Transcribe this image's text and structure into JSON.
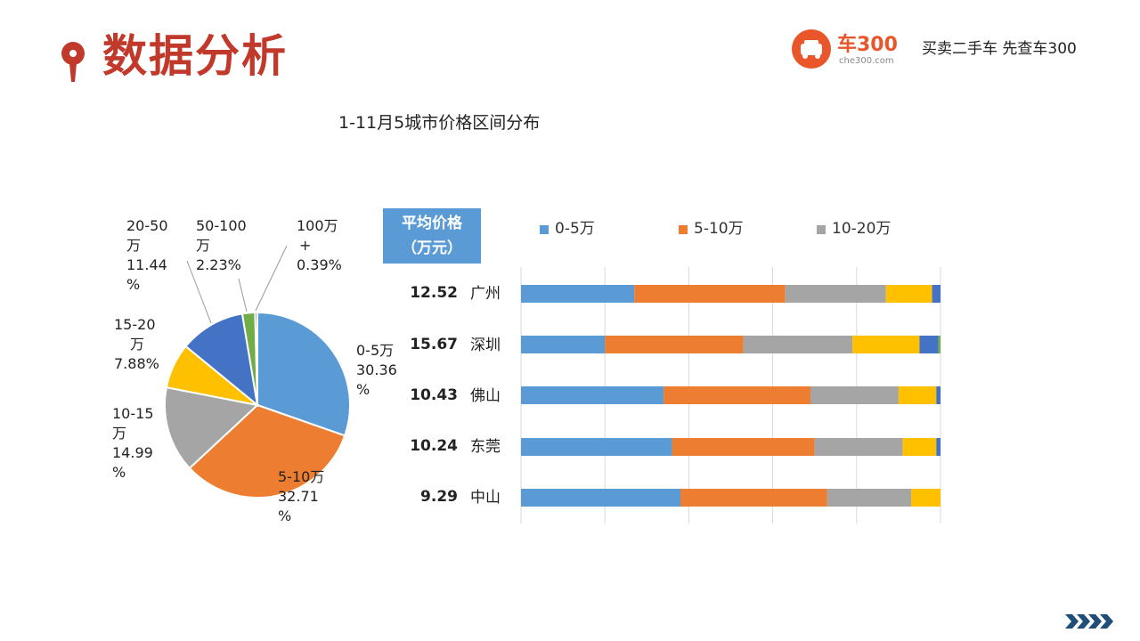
{
  "header": {
    "title": "数据分析",
    "brand": "车300",
    "brand_sub": "che300.com",
    "slogan": "买卖二手车  先查车300"
  },
  "chart_title": "1-11月5城市价格区间分布",
  "avg_box": {
    "line1": "平均价格",
    "line2": "（万元）"
  },
  "colors": {
    "title_red": "#c0392b",
    "brand_orange": "#e8562a",
    "s0": "#5b9bd5",
    "s1": "#ed7d31",
    "s2": "#a5a5a5",
    "s3": "#ffc000",
    "s4": "#4472c4",
    "s5": "#70ad47",
    "s6": "#255e91"
  },
  "legend": [
    "0-5万",
    "5-10万",
    "10-20万"
  ],
  "chart_data": [
    {
      "type": "pie",
      "slices": [
        {
          "label": "0-5万",
          "value": 30.36,
          "text": [
            "0-5万",
            "30.36",
            "%"
          ]
        },
        {
          "label": "5-10万",
          "value": 32.71,
          "text": [
            "5-10万",
            "32.71",
            "%"
          ]
        },
        {
          "label": "10-15万",
          "value": 14.99,
          "text": [
            "10-15",
            "万",
            "14.99",
            "%"
          ]
        },
        {
          "label": "15-20万",
          "value": 7.88,
          "text": [
            "15-20",
            "万",
            "7.88%"
          ]
        },
        {
          "label": "20-50万",
          "value": 11.44,
          "text": [
            "20-50",
            "万",
            "11.44",
            "%"
          ]
        },
        {
          "label": "50-100万",
          "value": 2.23,
          "text": [
            "50-100",
            "万",
            "2.23%"
          ]
        },
        {
          "label": "100万+",
          "value": 0.39,
          "text": [
            "100万",
            "+",
            "0.39%"
          ]
        }
      ]
    },
    {
      "type": "bar",
      "orientation": "horizontal",
      "stacked": true,
      "categories": [
        "广州",
        "深圳",
        "佛山",
        "东莞",
        "中山"
      ],
      "avg_price": [
        "12.52",
        "15.67",
        "10.43",
        "10.24",
        "9.29"
      ],
      "xlim": [
        0,
        100
      ],
      "series": [
        {
          "name": "0-5万",
          "values": [
            27,
            20,
            34,
            36,
            38
          ]
        },
        {
          "name": "5-10万",
          "values": [
            36,
            33,
            35,
            34,
            35
          ]
        },
        {
          "name": "10-20万",
          "values": [
            24,
            26,
            21,
            21,
            20
          ]
        },
        {
          "values": [
            11,
            16,
            9,
            8,
            7
          ]
        },
        {
          "values": [
            2,
            4.5,
            1,
            1,
            0
          ]
        },
        {
          "values": [
            0,
            0.5,
            0,
            0,
            0
          ]
        }
      ]
    }
  ]
}
